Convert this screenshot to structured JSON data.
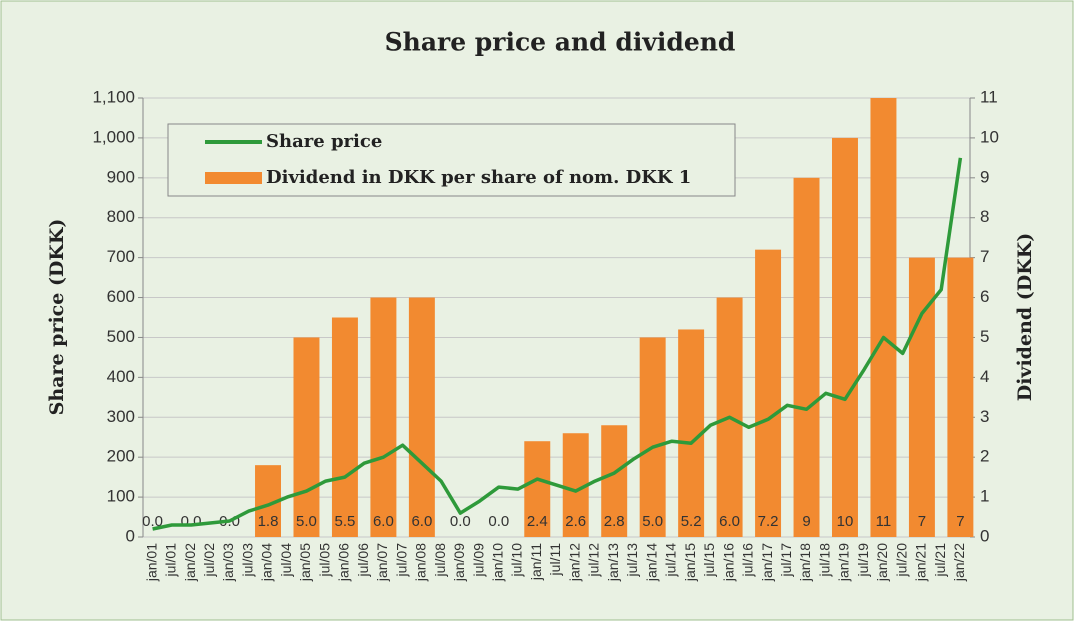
{
  "chart_data": {
    "type": "bar-line",
    "title": "Share price and dividend",
    "y_label": "Share price (DKK)",
    "y2_label": "Dividend (DKK)",
    "categories": [
      "jan/01",
      "jul/01",
      "jan/02",
      "jul/02",
      "jan/03",
      "jul/03",
      "jan/04",
      "jul/04",
      "jan/05",
      "jul/05",
      "jan/06",
      "jul/06",
      "jan/07",
      "jul/07",
      "jan/08",
      "jul/08",
      "jan/09",
      "jul/09",
      "jan/10",
      "jul/10",
      "jan/11",
      "jul/11",
      "jan/12",
      "jul/12",
      "jan/13",
      "jul/13",
      "jan/14",
      "jul/14",
      "jan/15",
      "jul/15",
      "jan/16",
      "jul/16",
      "jan/17",
      "jul/17",
      "jan/18",
      "jul/18",
      "jan/19",
      "jul/19",
      "jan/20",
      "jul/20",
      "jan/21",
      "jul/21",
      "jan/22"
    ],
    "series": [
      {
        "name": "Share price",
        "type": "line",
        "axis": "y",
        "color": "#2e9a3a",
        "values": [
          20,
          30,
          30,
          35,
          40,
          65,
          80,
          100,
          115,
          140,
          150,
          185,
          200,
          230,
          185,
          140,
          60,
          90,
          125,
          120,
          145,
          130,
          115,
          140,
          160,
          195,
          225,
          240,
          235,
          280,
          300,
          275,
          295,
          330,
          320,
          360,
          345,
          420,
          500,
          460,
          560,
          620,
          950
        ]
      },
      {
        "name": "Dividend in DKK per share of nom. DKK 1",
        "type": "bar",
        "axis": "y2",
        "color": "#f28a30",
        "values": [
          0,
          null,
          0,
          null,
          0,
          null,
          1.8,
          null,
          5.0,
          null,
          5.5,
          null,
          6.0,
          null,
          6.0,
          null,
          0,
          null,
          0,
          null,
          2.4,
          null,
          2.6,
          null,
          2.8,
          null,
          5.0,
          null,
          5.2,
          null,
          6.0,
          null,
          7.2,
          null,
          9,
          null,
          10,
          null,
          11,
          null,
          7,
          null,
          7
        ],
        "value_labels": [
          "0.0",
          null,
          "0.0",
          null,
          "0.0",
          null,
          "1.8",
          null,
          "5.0",
          null,
          "5.5",
          null,
          "6.0",
          null,
          "6.0",
          null,
          "0.0",
          null,
          "0.0",
          null,
          "2.4",
          null,
          "2.6",
          null,
          "2.8",
          null,
          "5.0",
          null,
          "5.2",
          null,
          "6.0",
          null,
          "7.2",
          null,
          "9",
          null,
          "10",
          null,
          "11",
          null,
          "7",
          null,
          "7"
        ]
      }
    ],
    "ylim": [
      0,
      1100
    ],
    "yticks": [
      0,
      100,
      200,
      300,
      400,
      500,
      600,
      700,
      800,
      900,
      {
        "value": 1000,
        "label": "1,000"
      },
      {
        "value": 1100,
        "label": "1,100"
      }
    ],
    "y2lim": [
      0,
      11
    ],
    "y2ticks": [
      0,
      1,
      2,
      3,
      4,
      5,
      6,
      7,
      8,
      9,
      10,
      11
    ],
    "grid": true,
    "legend": "top-left"
  }
}
